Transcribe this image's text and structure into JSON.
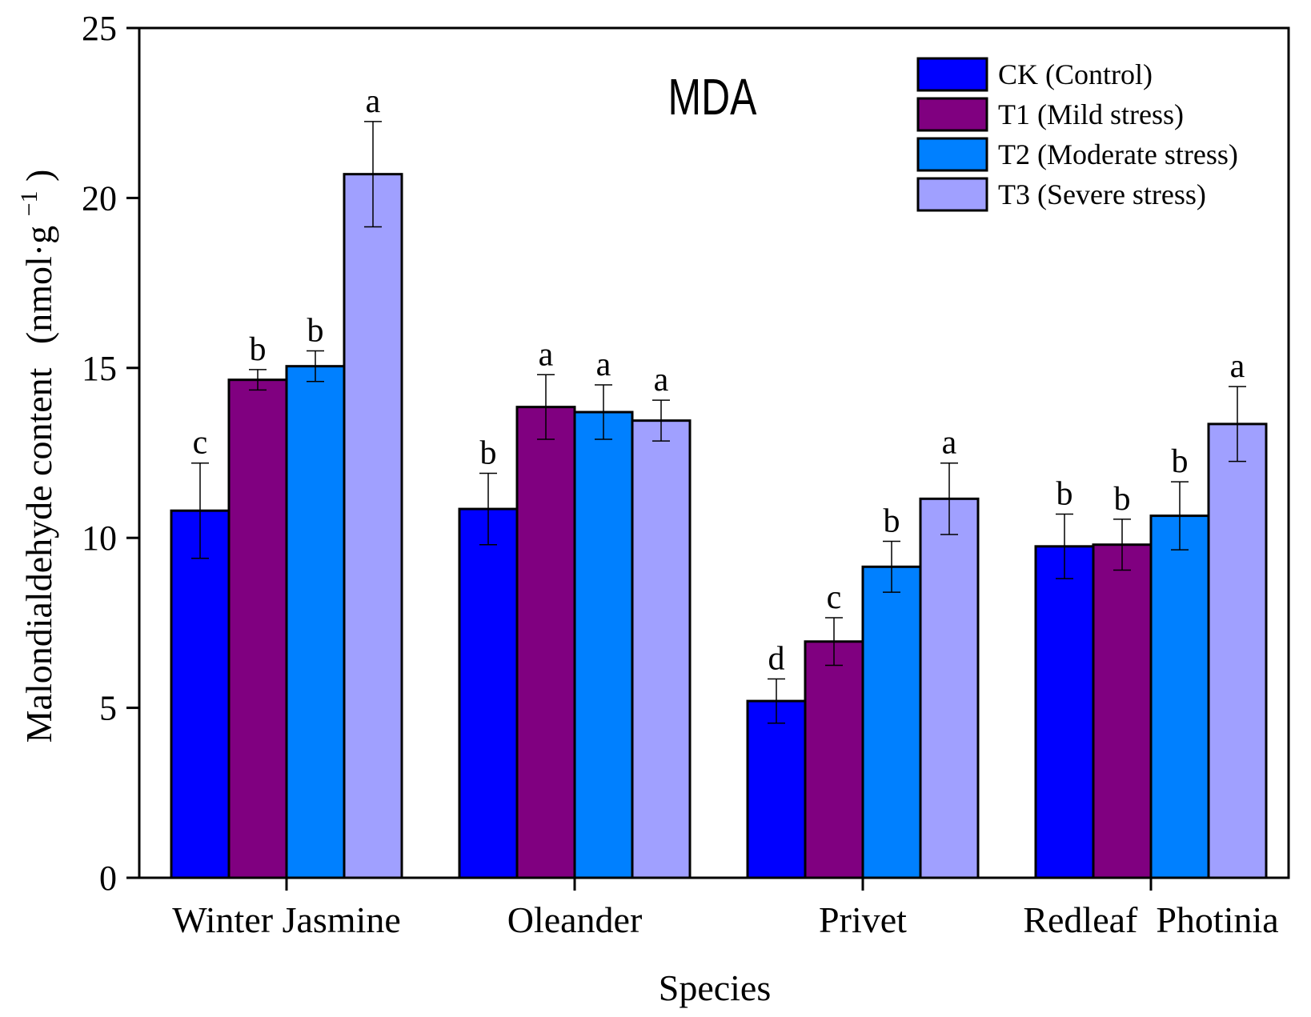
{
  "chart_data": {
    "type": "bar",
    "title": "MDA",
    "xlabel": "Species",
    "ylabel": "Malondialdehyde content",
    "ylabel_unit": "(nmol·g",
    "ylabel_unit_exp": "−1",
    "ylabel_unit_close": ")",
    "ylim": [
      0,
      25
    ],
    "yticks": [
      0,
      5,
      10,
      15,
      20,
      25
    ],
    "categories": [
      "Winter Jasmine",
      "Oleander",
      "Privet",
      "Redleaf  Photinia"
    ],
    "series": [
      {
        "name": "CK (Control)",
        "color": "#0000ff",
        "values": [
          10.8,
          10.85,
          5.2,
          9.75
        ],
        "errors": [
          1.4,
          1.05,
          0.65,
          0.95
        ],
        "letters": [
          "c",
          "b",
          "d",
          "b"
        ]
      },
      {
        "name": "T1 (Mild stress)",
        "color": "#800080",
        "values": [
          14.65,
          13.85,
          6.95,
          9.8
        ],
        "errors": [
          0.3,
          0.95,
          0.7,
          0.75
        ],
        "letters": [
          "b",
          "a",
          "c",
          "b"
        ]
      },
      {
        "name": "T2 (Moderate stress)",
        "color": "#0080ff",
        "values": [
          15.05,
          13.7,
          9.15,
          10.65
        ],
        "errors": [
          0.45,
          0.8,
          0.75,
          1.0
        ],
        "letters": [
          "b",
          "a",
          "b",
          "b"
        ]
      },
      {
        "name": "T3 (Severe stress)",
        "color": "#a0a0ff",
        "values": [
          20.7,
          13.45,
          11.15,
          13.35
        ],
        "errors": [
          1.55,
          0.6,
          1.05,
          1.1
        ],
        "letters": [
          "a",
          "a",
          "a",
          "a"
        ]
      }
    ],
    "legend_position": "top-right"
  }
}
